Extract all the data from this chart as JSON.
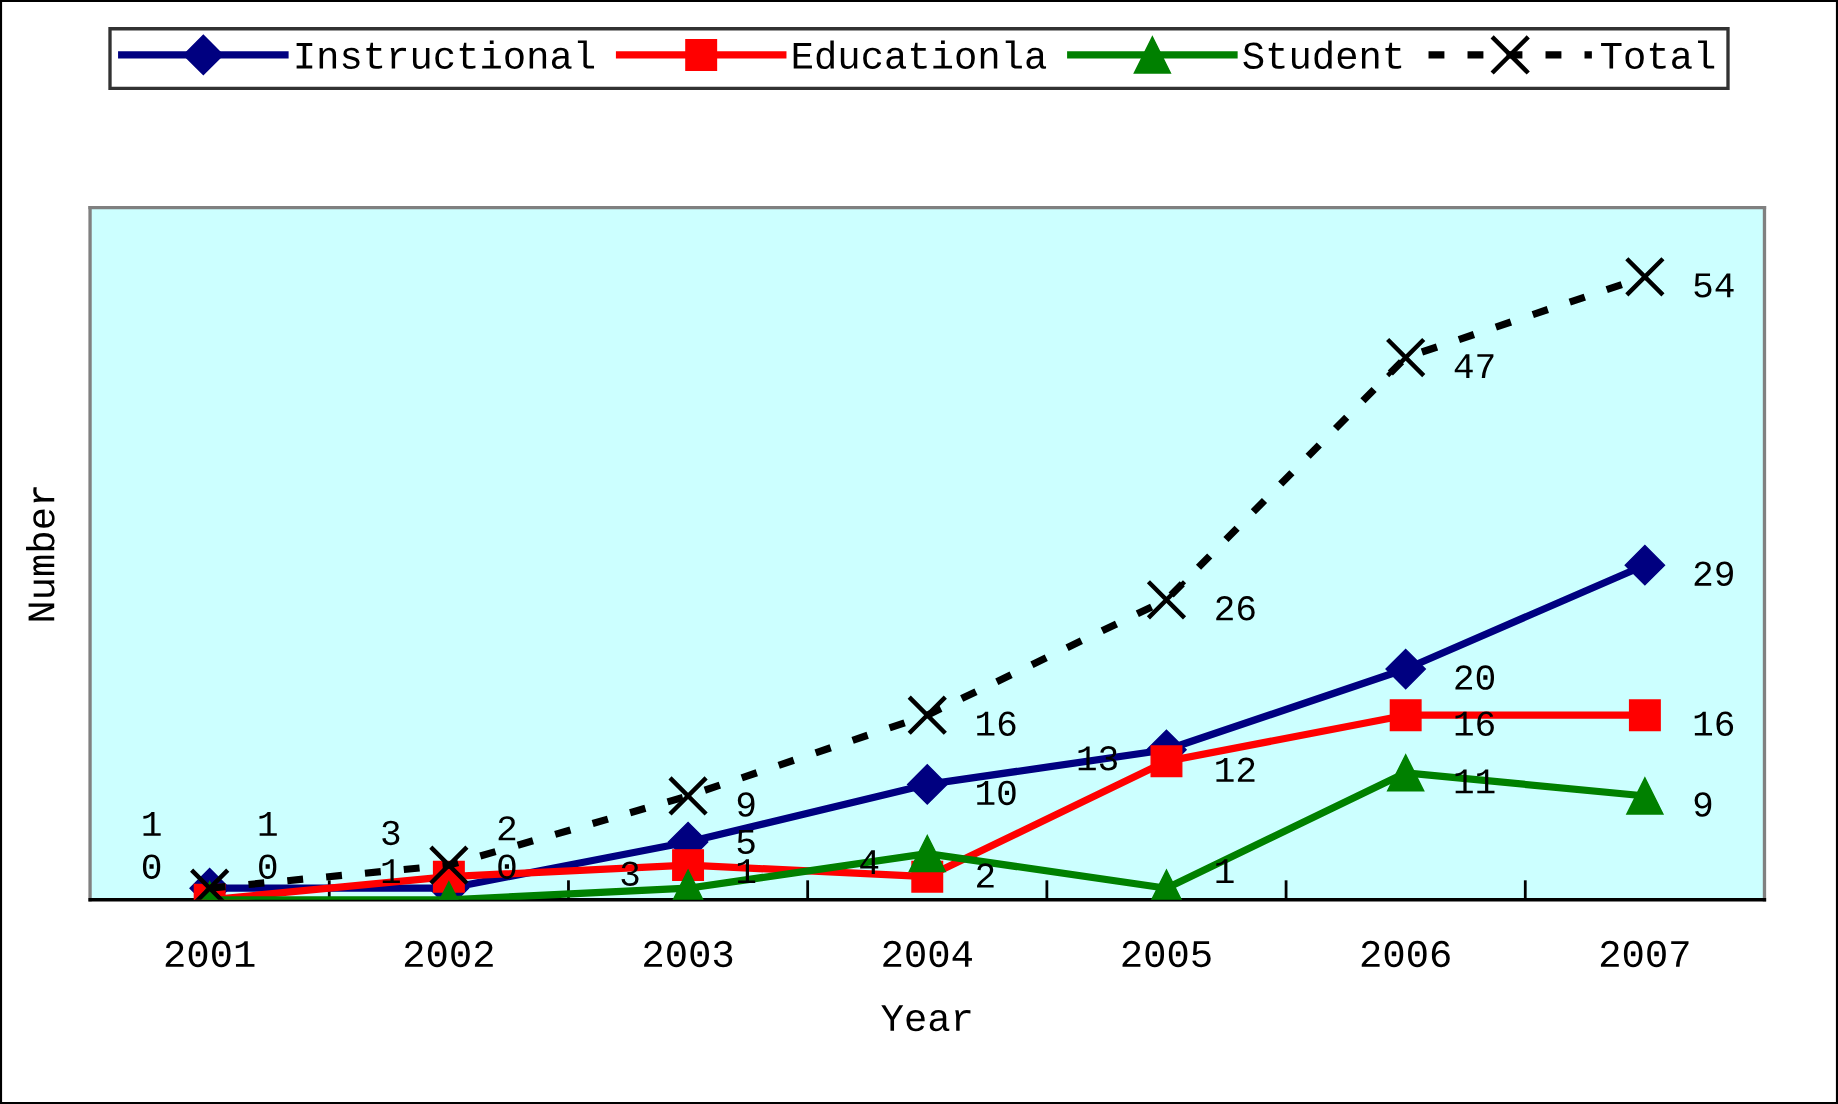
{
  "chart_data": {
    "type": "line",
    "xlabel": "Year",
    "ylabel": "Number",
    "categories": [
      "2001",
      "2002",
      "2003",
      "2004",
      "2005",
      "2006",
      "2007"
    ],
    "series": [
      {
        "name": "Instructional",
        "color": "#000080",
        "marker": "diamond",
        "values": [
          1,
          1,
          5,
          10,
          13,
          20,
          29
        ]
      },
      {
        "name": "Educationla",
        "color": "#ff0000",
        "marker": "square",
        "values": [
          0,
          2,
          3,
          2,
          12,
          16,
          16
        ]
      },
      {
        "name": "Student",
        "color": "#008000",
        "marker": "triangle",
        "values": [
          0,
          0,
          1,
          4,
          1,
          11,
          9
        ]
      },
      {
        "name": "Total",
        "color": "#000000",
        "marker": "cross",
        "line_style": "dashed",
        "values": [
          1,
          3,
          9,
          16,
          26,
          47,
          54
        ]
      }
    ],
    "ylim": [
      0,
      60
    ],
    "tick_labels": "x",
    "data_labels": true,
    "legend": "top",
    "line_style": "solid"
  }
}
